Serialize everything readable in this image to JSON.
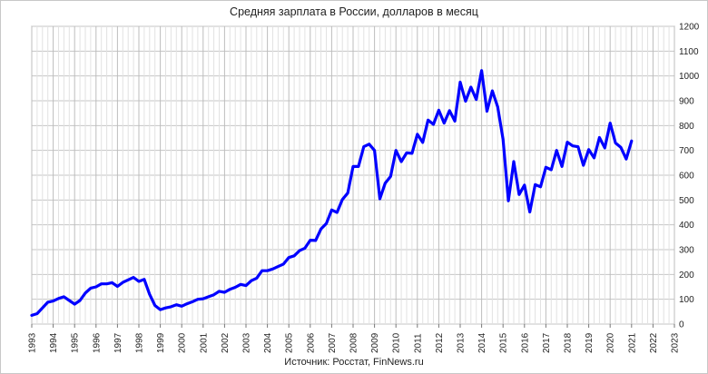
{
  "chart_data": {
    "type": "line",
    "title": "Средняя зарплата в России, долларов в месяц",
    "source": "Источник: Росстат, FinNews.ru",
    "xlabel": "",
    "ylabel": "",
    "x_ticks": [
      "1993",
      "1994",
      "1995",
      "1996",
      "1997",
      "1998",
      "1999",
      "2000",
      "2001",
      "2002",
      "2003",
      "2004",
      "2005",
      "2006",
      "2007",
      "2008",
      "2009",
      "2010",
      "2011",
      "2012",
      "2013",
      "2014",
      "2015",
      "2016",
      "2017",
      "2018",
      "2019",
      "2020",
      "2021",
      "2022",
      "2023"
    ],
    "y_ticks": [
      0,
      100,
      200,
      300,
      400,
      500,
      600,
      700,
      800,
      900,
      1000,
      1100,
      1200
    ],
    "ylim": [
      0,
      1200
    ],
    "xlim": [
      1993,
      2023
    ],
    "grid": true,
    "legend": "none",
    "series_color": "#0000ff",
    "series": [
      {
        "x": [
          1993.0,
          1993.25,
          1993.5,
          1993.75,
          1994.0,
          1994.25,
          1994.5,
          1994.75,
          1995.0,
          1995.25,
          1995.5,
          1995.75,
          1996.0,
          1996.25,
          1996.5,
          1996.75,
          1997.0,
          1997.25,
          1997.5,
          1997.75,
          1998.0,
          1998.25,
          1998.5,
          1998.75,
          1999.0,
          1999.25,
          1999.5,
          1999.75,
          2000.0,
          2000.25,
          2000.5,
          2000.75,
          2001.0,
          2001.25,
          2001.5,
          2001.75,
          2002.0,
          2002.25,
          2002.5,
          2002.75,
          2003.0,
          2003.25,
          2003.5,
          2003.75,
          2004.0,
          2004.25,
          2004.5,
          2004.75,
          2005.0,
          2005.25,
          2005.5,
          2005.75,
          2006.0,
          2006.25,
          2006.5,
          2006.75,
          2007.0,
          2007.25,
          2007.5,
          2007.75,
          2008.0,
          2008.25,
          2008.5,
          2008.75,
          2009.0,
          2009.25,
          2009.5,
          2009.75,
          2010.0,
          2010.25,
          2010.5,
          2010.75,
          2011.0,
          2011.25,
          2011.5,
          2011.75,
          2012.0,
          2012.25,
          2012.5,
          2012.75,
          2013.0,
          2013.25,
          2013.5,
          2013.75,
          2014.0,
          2014.25,
          2014.5,
          2014.75,
          2015.0,
          2015.25,
          2015.5,
          2015.75,
          2016.0,
          2016.25,
          2016.5,
          2016.75,
          2017.0,
          2017.25,
          2017.5,
          2017.75,
          2018.0,
          2018.25,
          2018.5,
          2018.75,
          2019.0,
          2019.25,
          2019.5,
          2019.75,
          2020.0,
          2020.25,
          2020.5,
          2020.75,
          2021.0
        ],
        "y": [
          35,
          42,
          65,
          88,
          93,
          103,
          110,
          95,
          80,
          95,
          125,
          145,
          150,
          162,
          162,
          167,
          152,
          168,
          178,
          188,
          172,
          180,
          120,
          75,
          58,
          65,
          70,
          78,
          72,
          82,
          90,
          100,
          102,
          110,
          118,
          132,
          128,
          140,
          148,
          160,
          155,
          175,
          185,
          215,
          215,
          222,
          232,
          242,
          268,
          275,
          296,
          306,
          338,
          337,
          383,
          405,
          460,
          450,
          502,
          528,
          635,
          635,
          715,
          725,
          700,
          505,
          568,
          595,
          700,
          655,
          690,
          688,
          765,
          732,
          822,
          805,
          862,
          810,
          860,
          818,
          975,
          898,
          955,
          905,
          1022,
          858,
          940,
          875,
          745,
          497,
          655,
          522,
          560,
          452,
          562,
          553,
          632,
          622,
          700,
          635,
          733,
          718,
          715,
          640,
          703,
          670,
          752,
          710,
          810,
          730,
          712,
          665,
          738
        ]
      }
    ]
  }
}
